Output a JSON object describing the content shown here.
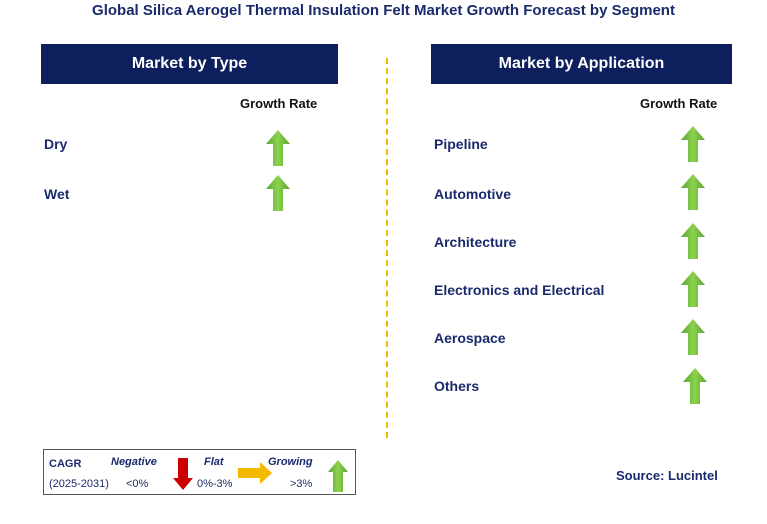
{
  "title": "Global Silica Aerogel Thermal Insulation Felt Market Growth Forecast by Segment",
  "left_panel": {
    "header": "Market by Type",
    "growth_label": "Growth Rate",
    "rows": [
      {
        "label": "Dry",
        "trend": "growing"
      },
      {
        "label": "Wet",
        "trend": "growing"
      }
    ]
  },
  "right_panel": {
    "header": "Market by Application",
    "growth_label": "Growth Rate",
    "rows": [
      {
        "label": "Pipeline",
        "trend": "growing"
      },
      {
        "label": "Automotive",
        "trend": "growing"
      },
      {
        "label": "Architecture",
        "trend": "growing"
      },
      {
        "label": "Electronics and Electrical",
        "trend": "growing"
      },
      {
        "label": "Aerospace",
        "trend": "growing"
      },
      {
        "label": "Others",
        "trend": "growing"
      }
    ]
  },
  "legend": {
    "cagr": "CAGR",
    "period": "(2025-2031)",
    "negative": {
      "label": "Negative",
      "range": "<0%",
      "color": "#cc0000"
    },
    "flat": {
      "label": "Flat",
      "range": "0%-3%",
      "color": "#f5b800"
    },
    "growing": {
      "label": "Growing",
      "range": ">3%",
      "color": "#7dc242"
    }
  },
  "source": "Source: Lucintel",
  "colors": {
    "header_bg": "#0d1f5c",
    "text": "#1a2a6c",
    "divider": "#f5b800",
    "growing_arrow": "#7dc242"
  }
}
